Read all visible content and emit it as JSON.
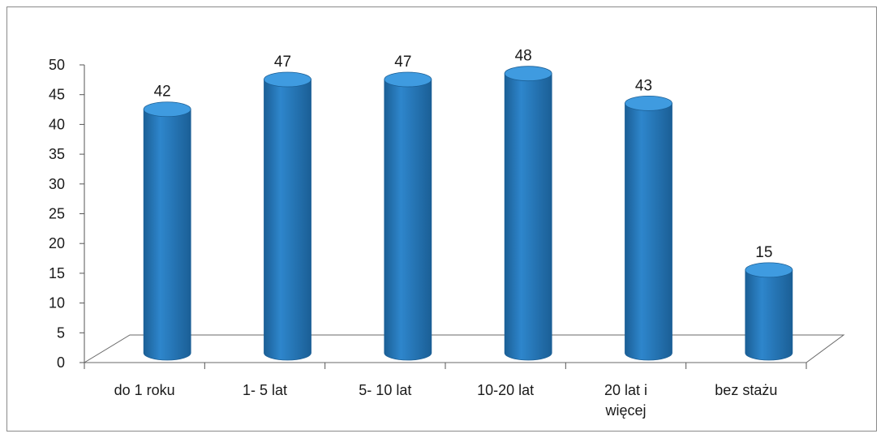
{
  "chart_data": {
    "type": "bar",
    "categories": [
      "do 1 roku",
      "1- 5 lat",
      "5- 10 lat",
      "10-20 lat",
      "20 lat i więcej",
      "bez stażu"
    ],
    "category_lines": [
      [
        "do 1 roku"
      ],
      [
        "1- 5 lat"
      ],
      [
        "5- 10 lat"
      ],
      [
        "10-20 lat"
      ],
      [
        "20 lat i",
        "więcej"
      ],
      [
        "bez stażu"
      ]
    ],
    "values": [
      42,
      47,
      47,
      48,
      43,
      15
    ],
    "yticks": [
      0,
      5,
      10,
      15,
      20,
      25,
      30,
      35,
      40,
      45,
      50
    ],
    "ylim": [
      0,
      50
    ],
    "title": "",
    "xlabel": "",
    "ylabel": "",
    "grid": false,
    "legend": "none",
    "style": "3d-cylinder",
    "bar_color": "#2e86cc",
    "bar_color_dark": "#1b5f96",
    "bar_top_color": "#3f9be0"
  }
}
